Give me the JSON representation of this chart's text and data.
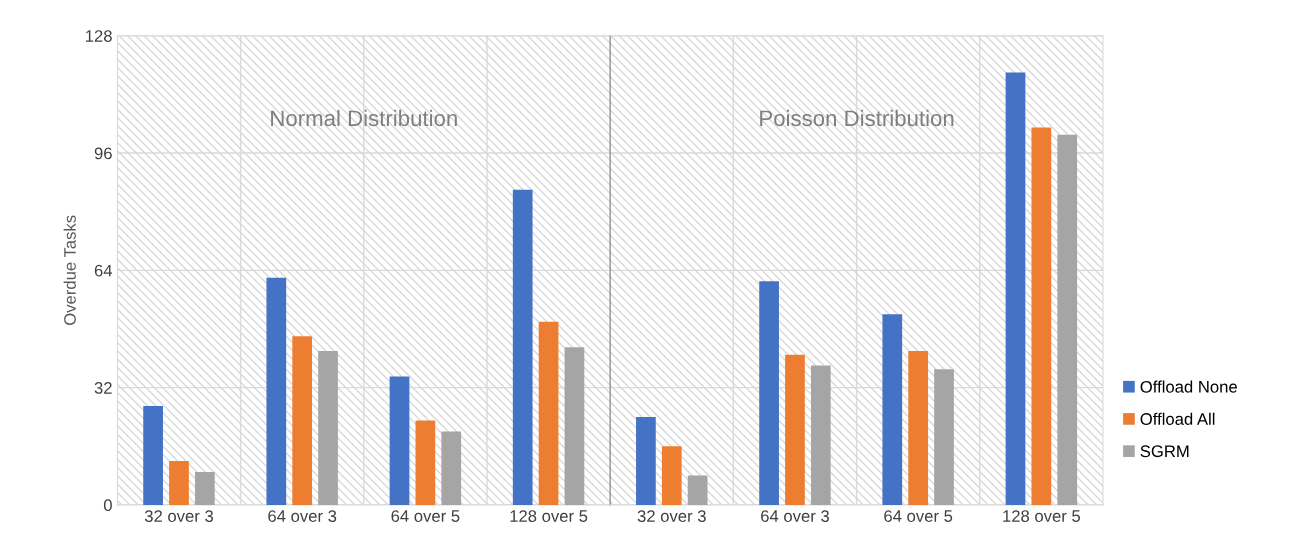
{
  "chart_data": [
    {
      "type": "bar",
      "categories": [
        "32 over 3",
        "64 over 3",
        "64 over 5",
        "128 over 5"
      ],
      "series": [
        {
          "name": "Offload None",
          "color": "#4472c4",
          "values": [
            27,
            62,
            35,
            86
          ]
        },
        {
          "name": "Offload All",
          "color": "#ed7d31",
          "values": [
            12,
            46,
            23,
            50
          ]
        },
        {
          "name": "SGRM",
          "color": "#a5a5a5",
          "values": [
            9,
            42,
            20,
            43
          ]
        }
      ],
      "ylabel": "Overdue Tasks",
      "ylim": [
        0,
        128
      ],
      "yticks": [
        0,
        32,
        64,
        96,
        128
      ],
      "annotations": [
        "Normal Distribution"
      ],
      "grid": true,
      "legend": "right"
    },
    {
      "type": "bar",
      "categories": [
        "32 over 3",
        "64 over 3",
        "64 over 5",
        "128 over 5"
      ],
      "series": [
        {
          "color": "#4472c4",
          "values": [
            24,
            61,
            52,
            118
          ]
        },
        {
          "color": "#ed7d31",
          "values": [
            16,
            41,
            42,
            103
          ]
        },
        {
          "color": "#a5a5a5",
          "values": [
            8,
            38,
            37,
            101
          ]
        }
      ],
      "ylim": [
        0,
        128
      ],
      "yticks": [
        0,
        32,
        64,
        96,
        128
      ],
      "tick_labels": "x",
      "annotations": [
        "Poisson Distribution"
      ],
      "grid": true
    }
  ]
}
